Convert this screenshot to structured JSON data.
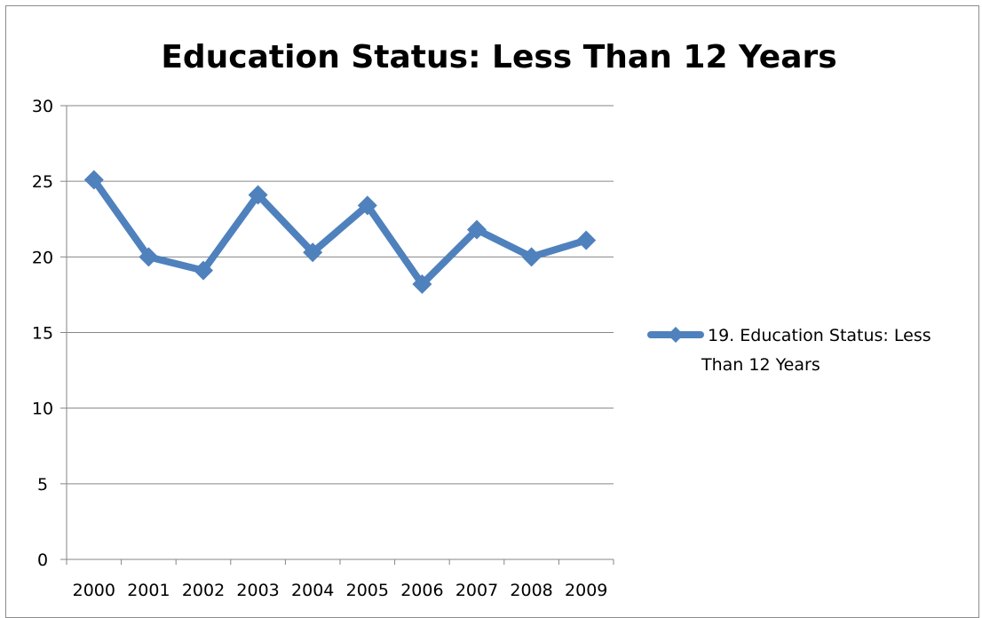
{
  "chart_data": {
    "type": "line",
    "title": "Education Status:  Less Than 12 Years",
    "categories": [
      "2000",
      "2001",
      "2002",
      "2003",
      "2004",
      "2005",
      "2006",
      "2007",
      "2008",
      "2009"
    ],
    "series": [
      {
        "name": "19. Education Status:  Less Than 12 Years",
        "values": [
          25.1,
          20.0,
          19.1,
          24.1,
          20.3,
          23.4,
          18.2,
          21.8,
          20.0,
          21.1
        ],
        "color": "#4f81bd"
      }
    ],
    "ylim": [
      0,
      30
    ],
    "yticks": [
      "0",
      "5",
      "10",
      "15",
      "20",
      "25",
      "30"
    ],
    "grid": true,
    "legend": "right",
    "legend_lines": [
      "19. Education Status:  Less",
      "Than 12 Years"
    ]
  }
}
